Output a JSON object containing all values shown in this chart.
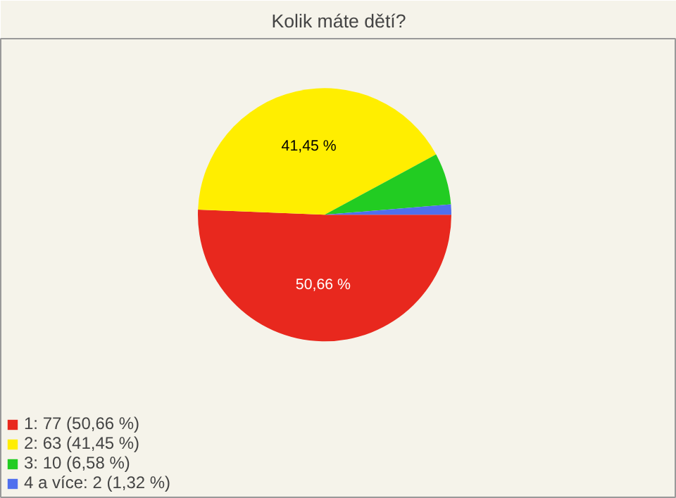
{
  "chart_data": {
    "type": "pie",
    "title": "Kolik máte dětí?",
    "categories": [
      "1: 77 (50,66 %)",
      "2: 63 (41,45 %)",
      "3: 10 (6,58 %)",
      "4 a více: 2 (1,32 %)"
    ],
    "values": [
      50.66,
      41.45,
      6.58,
      1.32
    ],
    "colors": [
      "#e8281e",
      "#ffee00",
      "#22cc22",
      "#4f6fee"
    ],
    "value_labels": [
      "50,66 %",
      "41,45 %",
      null,
      null
    ],
    "legend": "bottom left"
  }
}
